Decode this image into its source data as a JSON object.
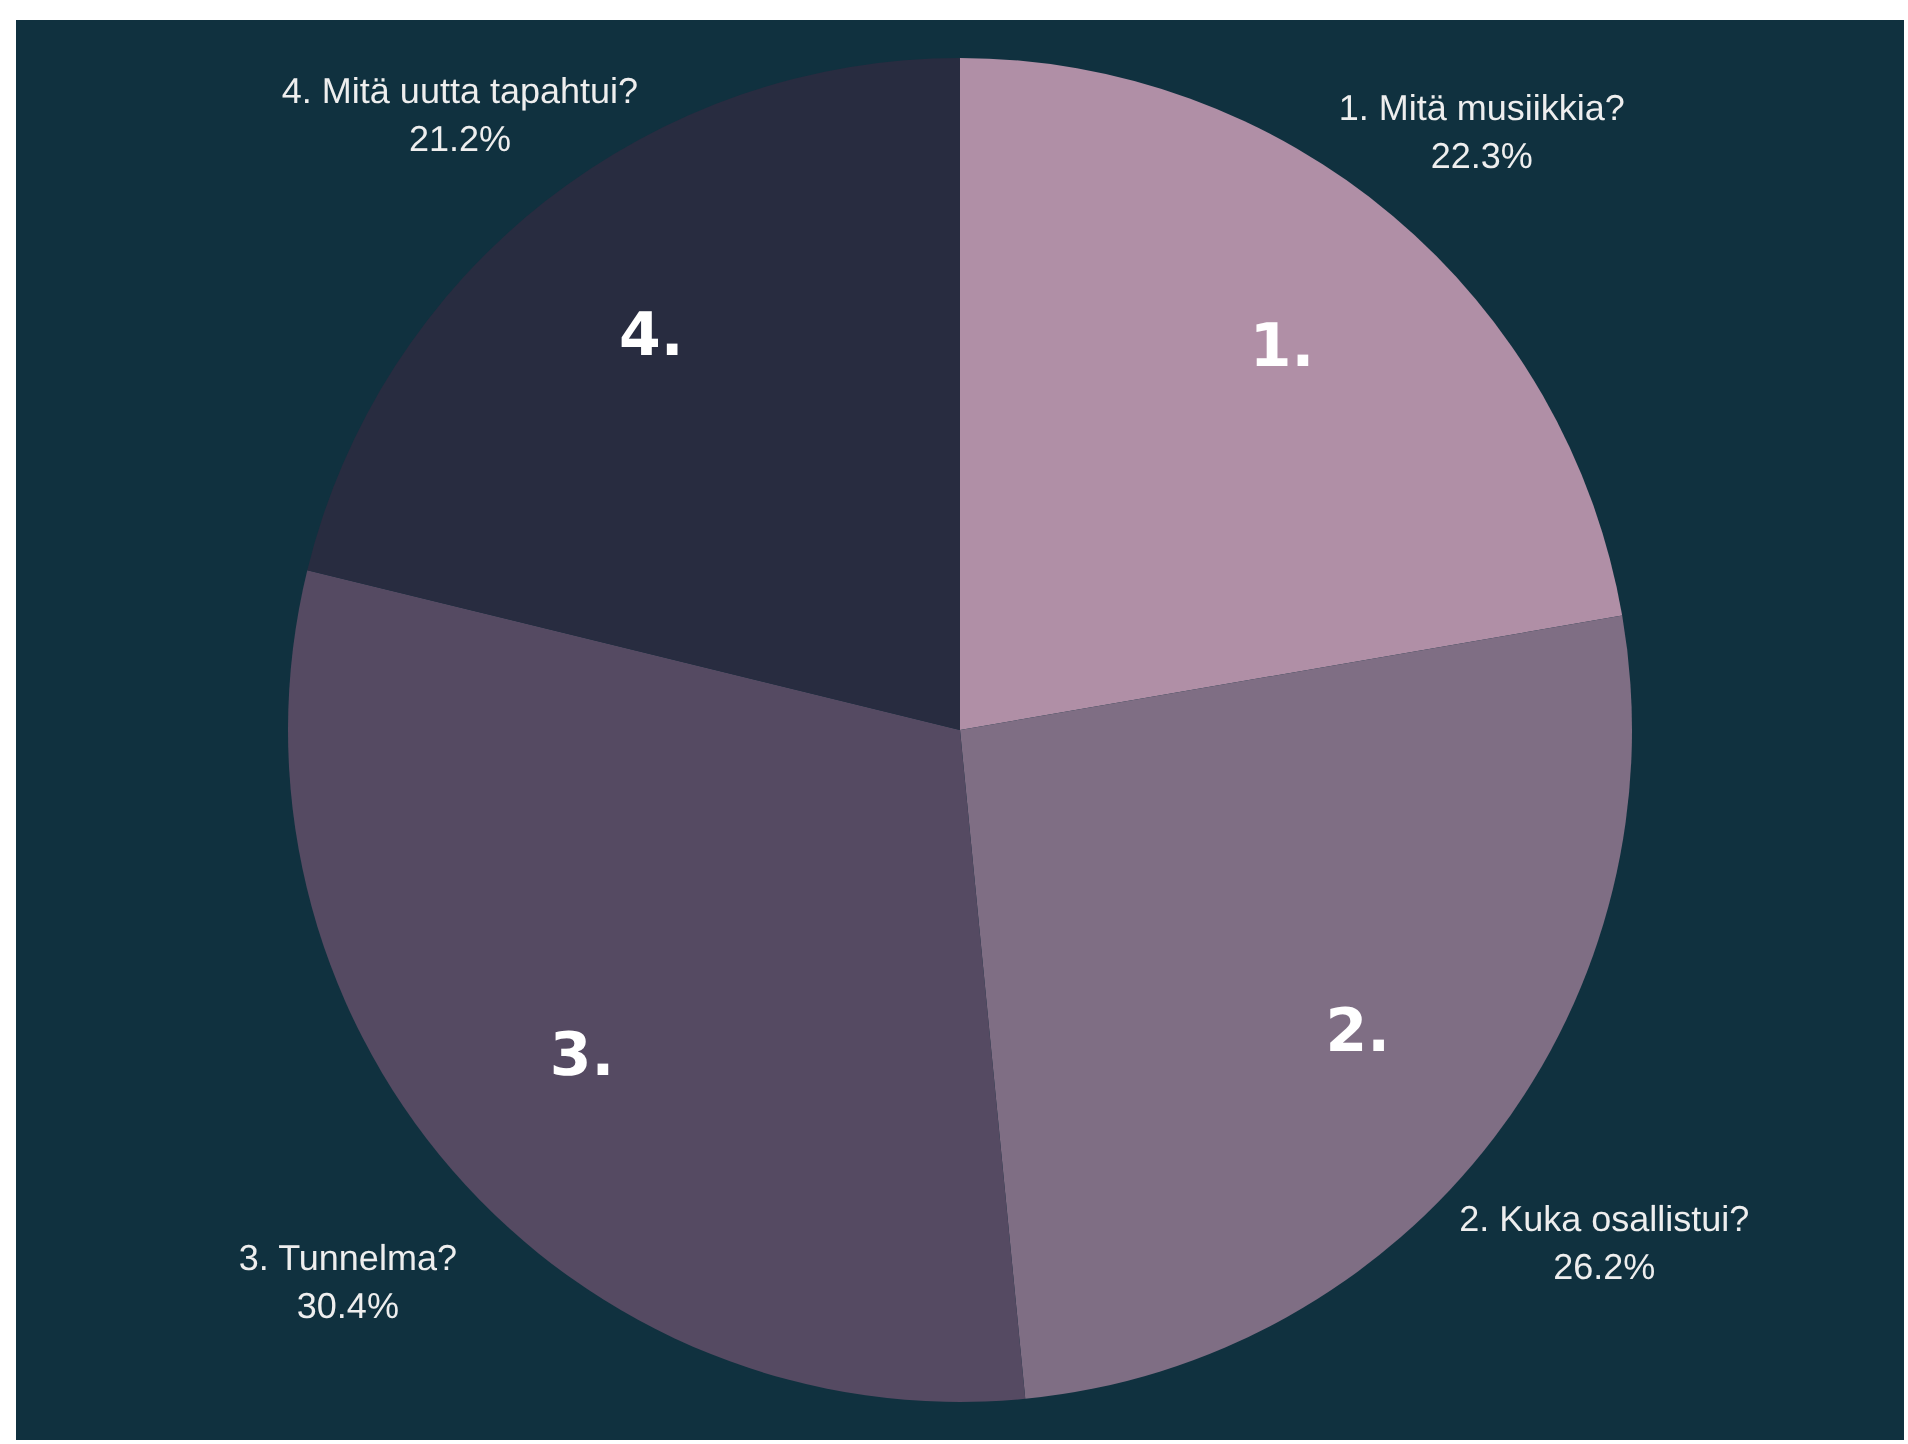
{
  "chart_data": {
    "type": "pie",
    "categories": [
      "1. Mitä musiikkia?",
      "2. Kuka osallistui?",
      "3. Tunnelma?",
      "4. Mitä uutta tapahtui?"
    ],
    "values": [
      22.3,
      26.2,
      30.4,
      21.2
    ],
    "value_labels": [
      "22.3%",
      "26.2%",
      "30.4%",
      "21.2%"
    ],
    "colors": [
      "#b08fa6",
      "#7f6e84",
      "#554a62",
      "#282c40"
    ],
    "annotations": [
      "1.",
      "2.",
      "3.",
      "4."
    ]
  }
}
